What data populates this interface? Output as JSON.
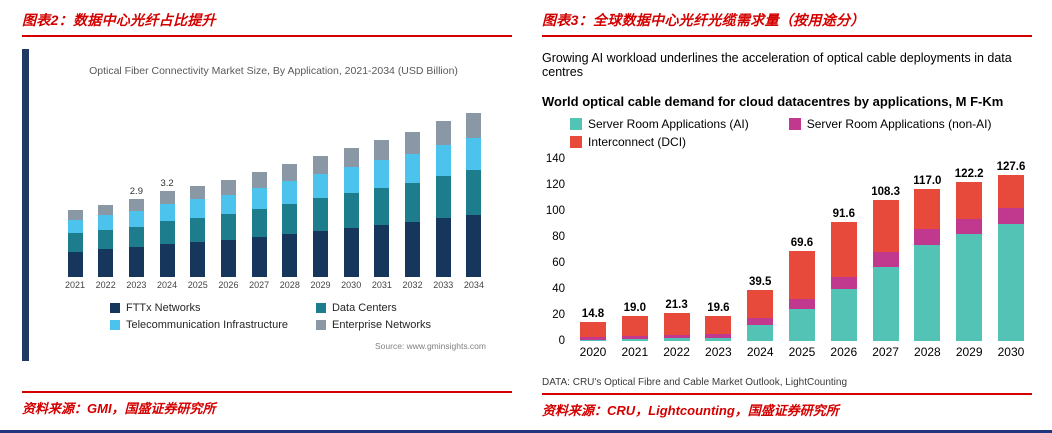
{
  "figure2": {
    "header": "图表2：数据中心光纤占比提升",
    "source": "资料来源：GMI，国盛证券研究所"
  },
  "figure3": {
    "header": "图表3：全球数据中心光纤光缆需求量（按用途分）",
    "strapline": "Growing AI workload underlines the acceleration of optical cable deployments in data centres",
    "footnote": "DATA: CRU's Optical Fibre and Cable Market Outlook, LightCounting",
    "source": "资料来源：CRU，Lightcounting，国盛证券研究所"
  },
  "chart_data": [
    {
      "type": "bar",
      "stacked": true,
      "title": "Optical Fiber Connectivity Market Size, By Application, 2021-2034 (USD Billion)",
      "categories": [
        "2021",
        "2022",
        "2023",
        "2024",
        "2025",
        "2026",
        "2027",
        "2028",
        "2029",
        "2030",
        "2031",
        "2032",
        "2033",
        "2034"
      ],
      "series": [
        {
          "name": "FTTx Networks",
          "color": "#16365c",
          "values": [
            0.95,
            1.03,
            1.1,
            1.22,
            1.29,
            1.37,
            1.48,
            1.6,
            1.71,
            1.82,
            1.94,
            2.05,
            2.2,
            2.32
          ]
        },
        {
          "name": "Data Centers",
          "color": "#1d7d8c",
          "values": [
            0.68,
            0.73,
            0.78,
            0.86,
            0.92,
            0.97,
            1.05,
            1.13,
            1.22,
            1.3,
            1.38,
            1.46,
            1.57,
            1.65
          ]
        },
        {
          "name": "Telecommunication Infrastructure",
          "color": "#4cc3ec",
          "values": [
            0.5,
            0.54,
            0.58,
            0.64,
            0.68,
            0.72,
            0.78,
            0.84,
            0.9,
            0.96,
            1.02,
            1.08,
            1.16,
            1.22
          ]
        },
        {
          "name": "Enterprise Networks",
          "color": "#8a97a5",
          "values": [
            0.37,
            0.4,
            0.44,
            0.48,
            0.51,
            0.54,
            0.59,
            0.63,
            0.67,
            0.72,
            0.77,
            0.81,
            0.87,
            0.91
          ]
        }
      ],
      "annotations": [
        {
          "category": "2023",
          "label": "2.9"
        },
        {
          "category": "2024",
          "label": "3.2"
        }
      ],
      "ylim": [
        0,
        7
      ],
      "grid": false,
      "legend_position": "bottom",
      "source": "Source: www.gminsights.com"
    },
    {
      "type": "bar",
      "stacked": true,
      "title": "World optical cable demand for cloud datacentres by applications, M F-Km",
      "categories": [
        "2020",
        "2021",
        "2022",
        "2023",
        "2024",
        "2025",
        "2026",
        "2027",
        "2028",
        "2029",
        "2030"
      ],
      "series": [
        {
          "name": "Server Room Applications (AI)",
          "color": "#52c3b4",
          "values": [
            1.0,
            1.5,
            2.0,
            2.5,
            12.0,
            25.0,
            40.0,
            57.0,
            74.0,
            82.0,
            90.0
          ]
        },
        {
          "name": "Server Room Applications (non-AI)",
          "color": "#c0398f",
          "values": [
            2.0,
            2.5,
            3.0,
            3.0,
            5.5,
            7.6,
            9.6,
            11.3,
            12.0,
            12.2,
            12.6
          ]
        },
        {
          "name": "Interconnect (DCI)",
          "color": "#e74a3a",
          "values": [
            11.8,
            15.0,
            16.3,
            14.1,
            22.0,
            37.0,
            42.0,
            40.0,
            31.0,
            28.0,
            25.0
          ]
        }
      ],
      "bar_labels": [
        "14.8",
        "19.0",
        "21.3",
        "19.6",
        "39.5",
        "69.6",
        "91.6",
        "108.3",
        "117.0",
        "122.2",
        "127.6"
      ],
      "ylim": [
        0,
        140
      ],
      "yticks": [
        0,
        20,
        40,
        60,
        80,
        100,
        120,
        140
      ],
      "grid": false,
      "legend_position": "top"
    }
  ]
}
